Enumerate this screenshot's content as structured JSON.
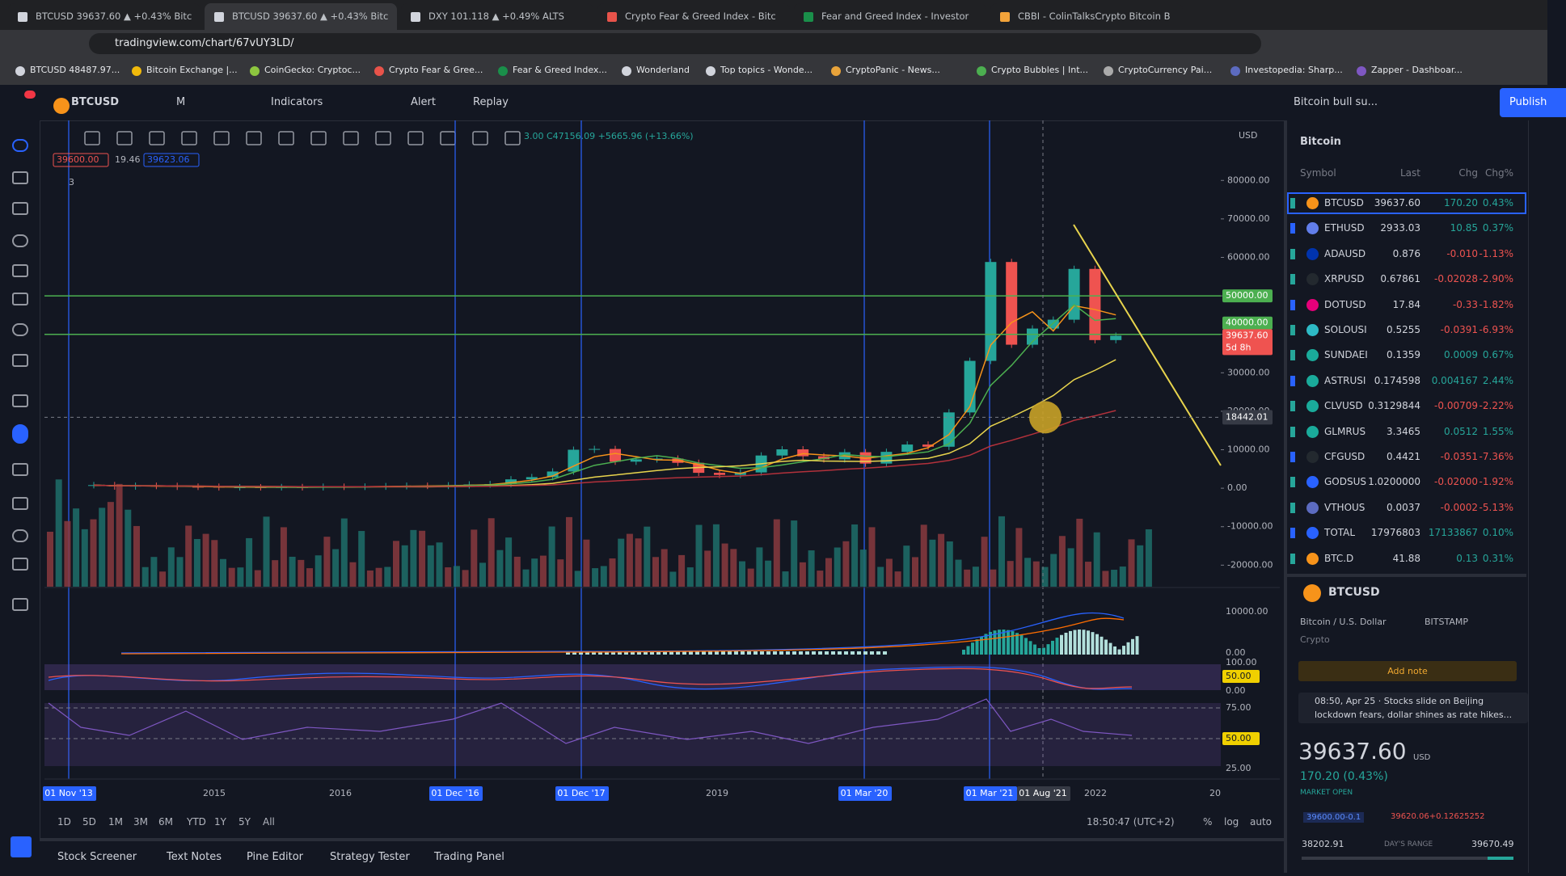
{
  "browser": {
    "tabs": [
      "BTCUSD 39637.60 ▲ +0.43% Bitc",
      "BTCUSD 39637.60 ▲ +0.43% Bitc",
      "DXY 101.118 ▲ +0.49% ALTS",
      "Crypto Fear & Greed Index - Bitc",
      "Fear and Greed Index - Investor",
      "CBBI - ColinTalksCrypto Bitcoin B"
    ],
    "url": "tradingview.com/chart/67vUY3LD/",
    "bookmarks": [
      "BTCUSD 48487.97...",
      "Bitcoin Exchange |...",
      "CoinGecko: Cryptoc...",
      "Crypto Fear & Gree...",
      "Fear & Greed Index...",
      "Wonderland",
      "Top topics - Wonde...",
      "CryptoPanic - News...",
      "Crypto Bubbles | Int...",
      "CryptoCurrency Pai...",
      "Investopedia: Sharp...",
      "Zapper - Dashboar..."
    ]
  },
  "toolbar": {
    "symbol": "BTCUSD",
    "interval": "M",
    "indicators": "Indicators",
    "alert": "Alert",
    "replay": "Replay",
    "layout": "Bitcoin bull su...",
    "publish": "Publish"
  },
  "chart": {
    "legend": "3.00 C47156.09 +5665.96 (+13.66%)",
    "legend_boxes": [
      "39600.00",
      "19.46",
      "39623.06"
    ],
    "collapse": "3",
    "currency": "USD",
    "ylim": [
      -25600,
      95600
    ],
    "price_ticks": [
      {
        "value": 80000,
        "label": "80000.00"
      },
      {
        "value": 70000,
        "label": "70000.00"
      },
      {
        "value": 60000,
        "label": "60000.00"
      },
      {
        "value": 50000,
        "label": "50000.00"
      },
      {
        "value": 40000,
        "label": "40000.00"
      },
      {
        "value": 30000,
        "label": "30000.00"
      },
      {
        "value": 20000,
        "label": "20000.00"
      },
      {
        "value": 10000,
        "label": "10000.00"
      },
      {
        "value": 0,
        "label": "0.00"
      },
      {
        "value": -10000,
        "label": "-10000.00"
      },
      {
        "value": -20000,
        "label": "-20000.00"
      }
    ],
    "levels": [
      {
        "value": 50000,
        "label": "50000.00"
      },
      {
        "value": 40000,
        "label": "40000.00"
      }
    ],
    "last_price": {
      "value": 39637.6,
      "label": "39637.60"
    },
    "countdown": "5d 8h",
    "crosshair": {
      "value": 18442.01,
      "label": "18442.01"
    },
    "closes": [
      800,
      450,
      630,
      590,
      390,
      380,
      220,
      245,
      230,
      285,
      236,
      378,
      370,
      416,
      530,
      624,
      610,
      742,
      970,
      1080,
      2300,
      2880,
      4340,
      10000,
      10200,
      6900,
      7500,
      7700,
      6600,
      4000,
      3450,
      4100,
      8500,
      10100,
      8300,
      7500,
      9350,
      6400,
      9450,
      11350,
      10780,
      19700,
      33100,
      58800,
      37300,
      41500,
      43800,
      57000,
      38500,
      39637.6
    ],
    "time_labels": [
      "01 Nov '13",
      "2015",
      "2016",
      "01 Dec '16",
      "01 Dec '17",
      "2019",
      "01 Mar '20",
      "01 Mar '21",
      "01 Aug '21",
      "2022",
      "20"
    ],
    "macd_labels": [
      "10000.00",
      "0.00"
    ],
    "rsi_labels": [
      "100.00",
      "50.00",
      "0.00"
    ],
    "stoch_labels": [
      "75.00",
      "50.00",
      "25.00"
    ]
  },
  "range_bar": {
    "ranges": [
      "1D",
      "5D",
      "1M",
      "3M",
      "6M",
      "YTD",
      "1Y",
      "5Y",
      "All"
    ],
    "clock": "18:50:47 (UTC+2)",
    "options": [
      "%",
      "log",
      "auto"
    ]
  },
  "bottom_tabs": [
    "Stock Screener",
    "Text Notes",
    "Pine Editor",
    "Strategy Tester",
    "Trading Panel"
  ],
  "watchlist": {
    "title": "Bitcoin",
    "columns": [
      "Symbol",
      "Last",
      "Chg",
      "Chg%"
    ],
    "rows": [
      [
        "BTCUSD",
        "39637.60",
        "170.20",
        "0.43%"
      ],
      [
        "ETHUSD",
        "2933.03",
        "10.85",
        "0.37%"
      ],
      [
        "ADAUSD",
        "0.876",
        "-0.010",
        "-1.13%"
      ],
      [
        "XRPUSD",
        "0.67861",
        "-0.02028",
        "-2.90%"
      ],
      [
        "DOTUSD",
        "17.84",
        "-0.33",
        "-1.82%"
      ],
      [
        "SOLOUSI",
        "0.5255",
        "-0.0391",
        "-6.93%"
      ],
      [
        "SUNDAEI",
        "0.1359",
        "0.0009",
        "0.67%"
      ],
      [
        "ASTRUSI",
        "0.174598",
        "0.004167",
        "2.44%"
      ],
      [
        "CLVUSD",
        "0.3129844",
        "-0.00709",
        "-2.22%"
      ],
      [
        "GLMRUS",
        "3.3465",
        "0.0512",
        "1.55%"
      ],
      [
        "CFGUSD",
        "0.4421",
        "-0.0351",
        "-7.36%"
      ],
      [
        "GODSUS",
        "1.0200000",
        "-0.02000",
        "-1.92%"
      ],
      [
        "VTHOUS",
        "0.0037",
        "-0.0002",
        "-5.13%"
      ],
      [
        "TOTAL",
        "17976803",
        "17133867",
        "0.10%"
      ],
      [
        "BTC.D",
        "41.88",
        "0.13",
        "0.31%"
      ]
    ]
  },
  "details": {
    "symbol": "BTCUSD",
    "description": "Bitcoin / U.S. Dollar",
    "exchange": "BITSTAMP",
    "category": "Crypto",
    "add_note": "Add note",
    "news": "08:50, Apr 25 · Stocks slide on Beijing lockdown fears, dollar shines as rate hikes...",
    "price": "39637.60",
    "currency": "USD",
    "change": "170.20 (0.43%)",
    "status": "MARKET OPEN",
    "bid": "39600.00-0.1",
    "ask": "39620.06+0.12625252",
    "day_low": "38202.91",
    "day_range": "DAY'S RANGE",
    "day_high": "39670.49"
  }
}
